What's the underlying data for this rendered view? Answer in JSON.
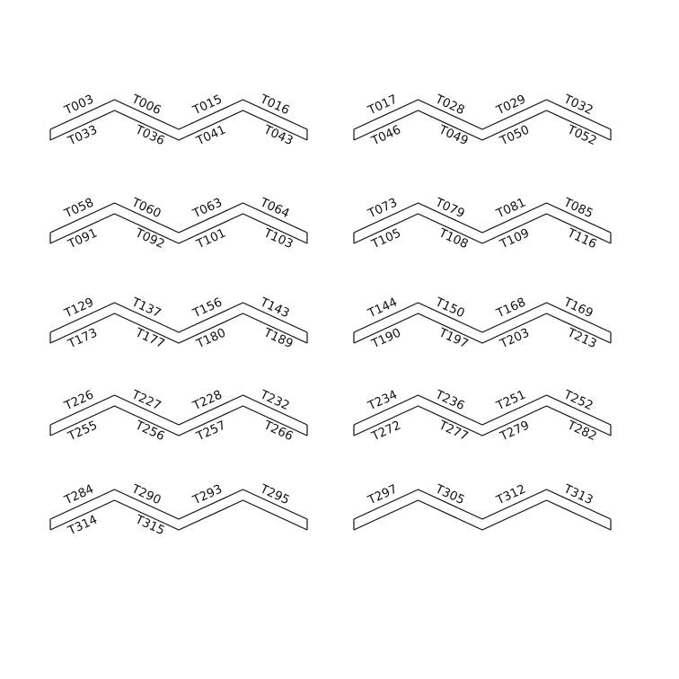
{
  "panels": [
    {
      "top": [
        "T003",
        "T006",
        "T015",
        "T016"
      ],
      "bottom": [
        "T033",
        "T036",
        "T041",
        "T043"
      ]
    },
    {
      "top": [
        "T017",
        "T028",
        "T029",
        "T032"
      ],
      "bottom": [
        "T046",
        "T049",
        "T050",
        "T052"
      ]
    },
    {
      "top": [
        "T058",
        "T060",
        "T063",
        "T064"
      ],
      "bottom": [
        "T091",
        "T092",
        "T101",
        "T103"
      ]
    },
    {
      "top": [
        "T073",
        "T079",
        "T081",
        "T085"
      ],
      "bottom": [
        "T105",
        "T108",
        "T109",
        "T116"
      ]
    },
    {
      "top": [
        "T129",
        "T137",
        "T156",
        "T143"
      ],
      "bottom": [
        "T173",
        "T177",
        "T180",
        "T189"
      ]
    },
    {
      "top": [
        "T144",
        "T150",
        "T168",
        "T169"
      ],
      "bottom": [
        "T190",
        "T197",
        "T203",
        "T213"
      ]
    },
    {
      "top": [
        "T226",
        "T227",
        "T228",
        "T232"
      ],
      "bottom": [
        "T255",
        "T256",
        "T257",
        "T266"
      ]
    },
    {
      "top": [
        "T234",
        "T236",
        "T251",
        "T252"
      ],
      "bottom": [
        "T272",
        "T277",
        "T279",
        "T282"
      ]
    },
    {
      "top": [
        "T284",
        "T290",
        "T293",
        "T295"
      ],
      "bottom": [
        "T314",
        "T315"
      ]
    },
    {
      "top": [
        "T297",
        "T305",
        "T312",
        "T313"
      ],
      "bottom": []
    }
  ]
}
